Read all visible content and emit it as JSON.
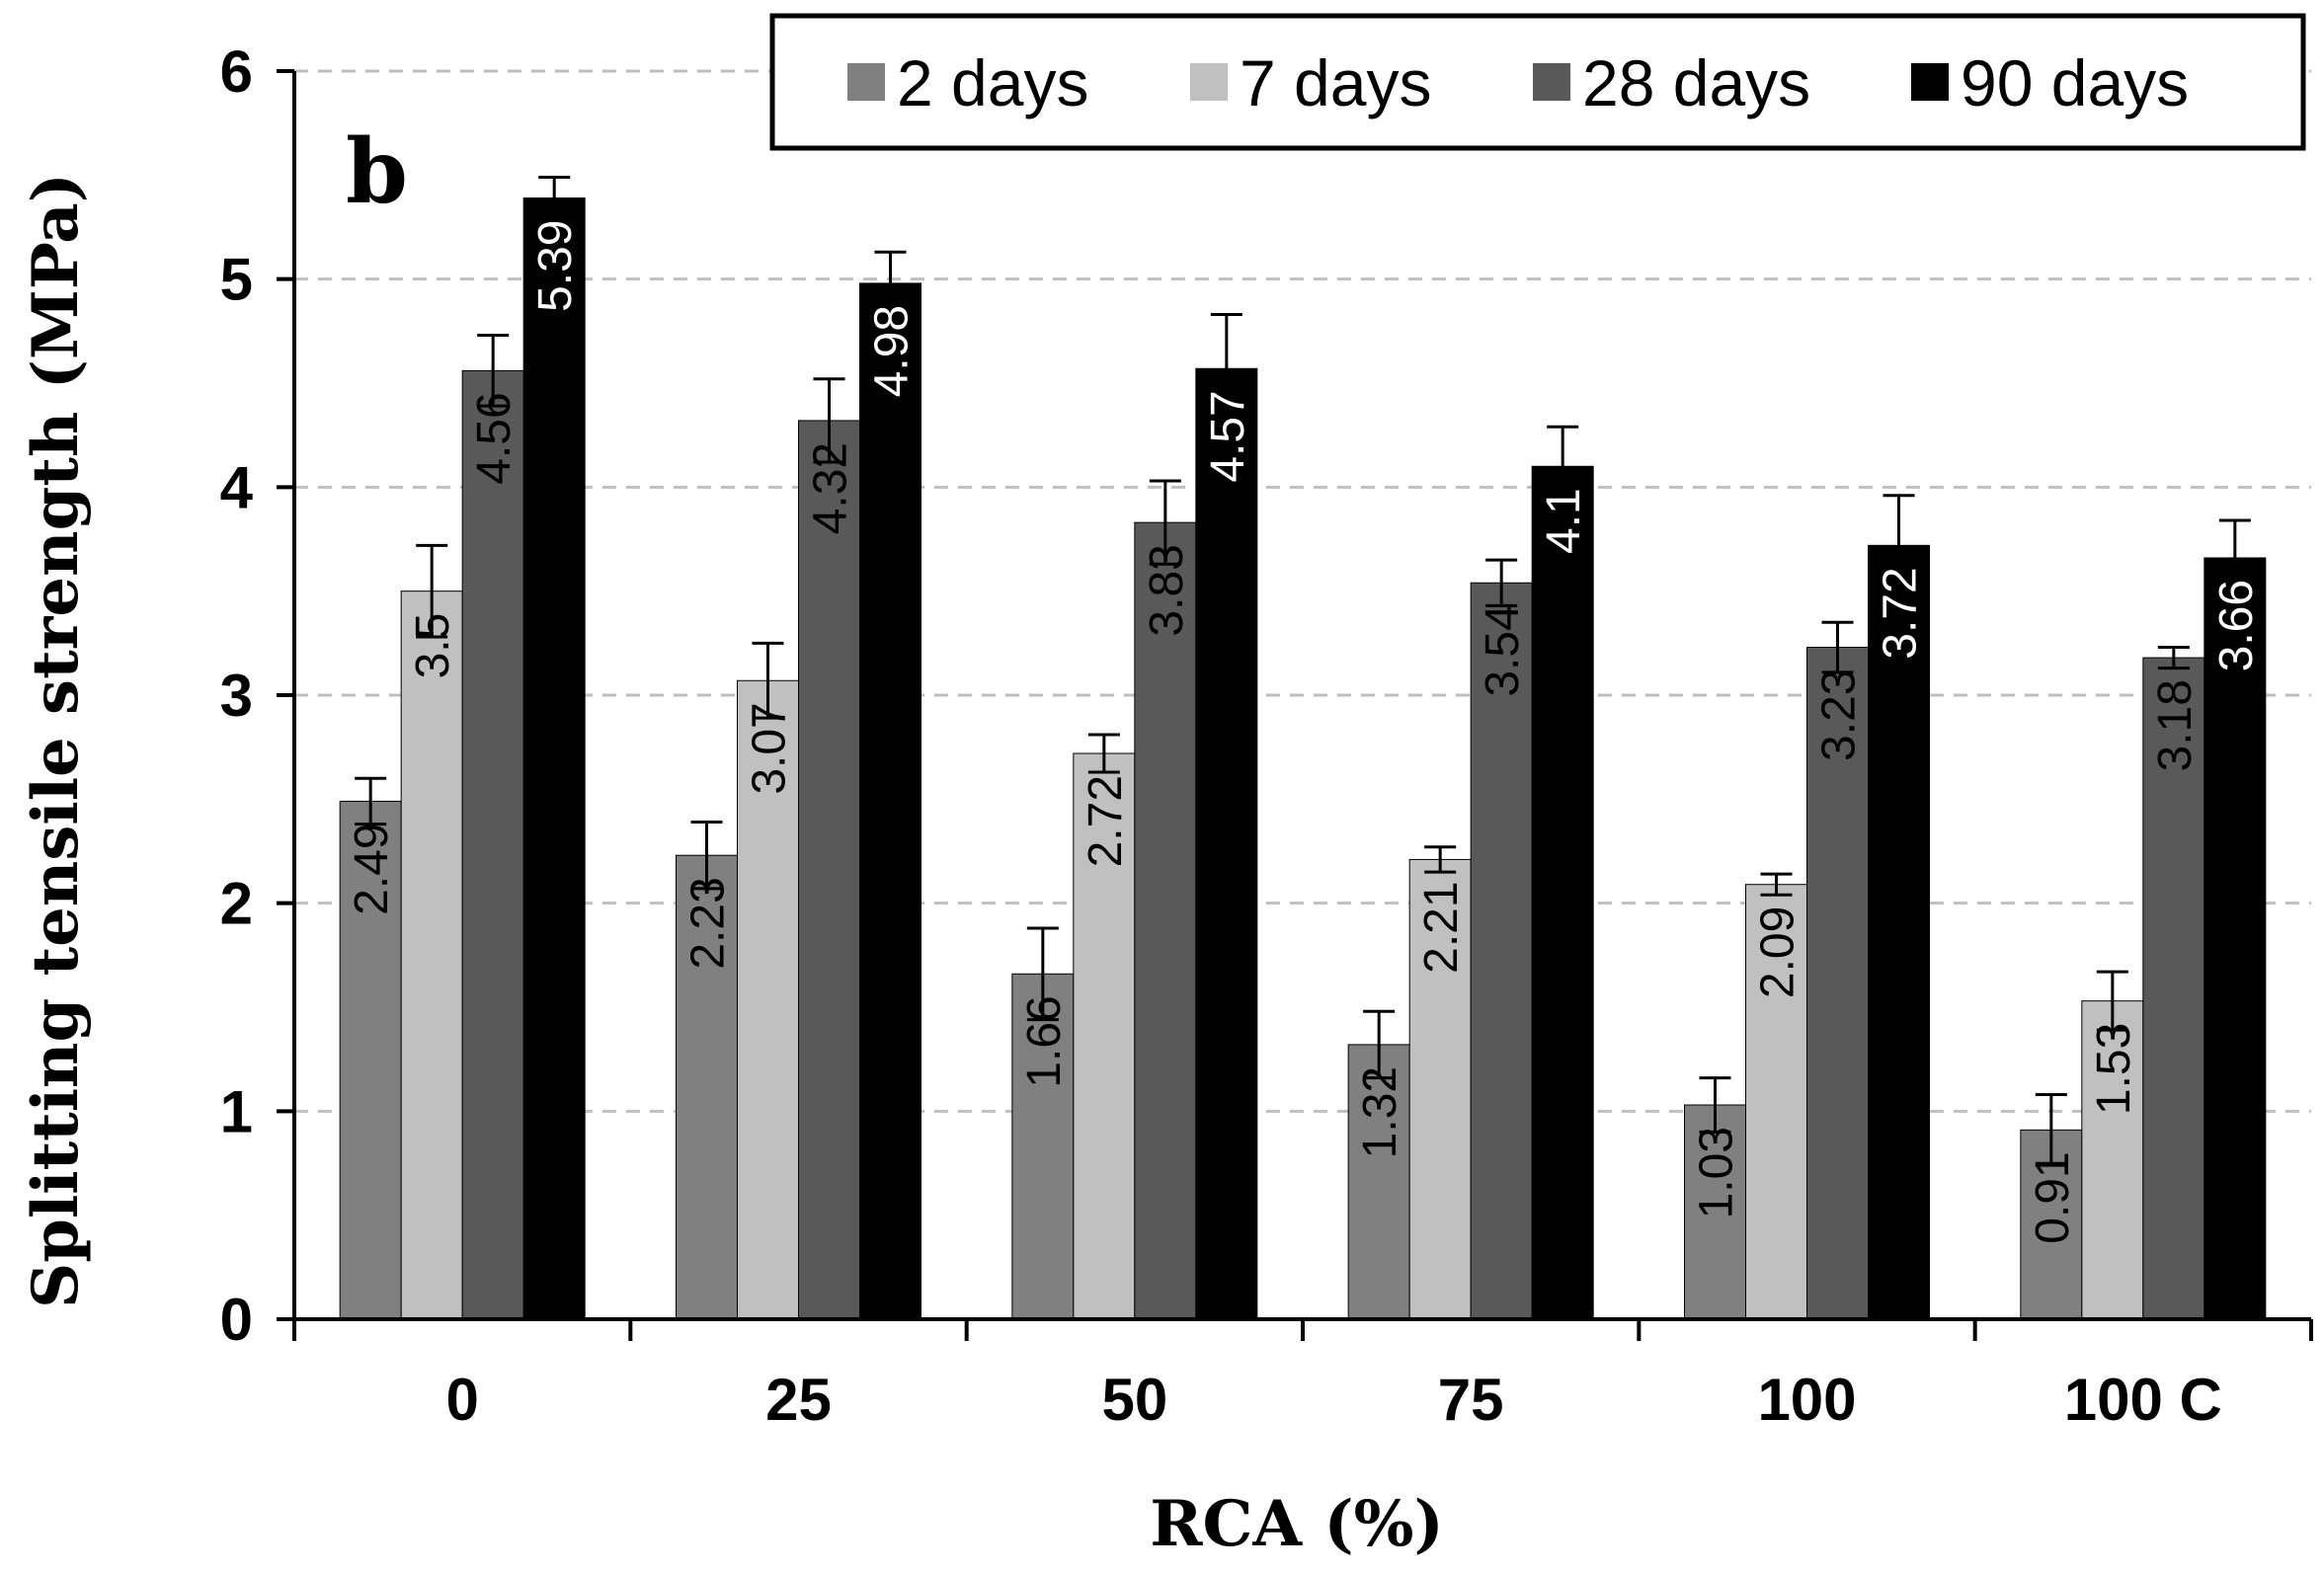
{
  "chart_data": {
    "type": "bar",
    "panel_label": "b",
    "title": "",
    "xlabel": "RCA (%)",
    "ylabel": "Splitting tensile strength (MPa)",
    "ylim": [
      0,
      6
    ],
    "yticks": [
      "0",
      "1",
      "2",
      "3",
      "4",
      "5",
      "6"
    ],
    "grid": "horizontal dashed",
    "legend_position": "top-right",
    "categories": [
      "0",
      "25",
      "50",
      "75",
      "100",
      "100 C"
    ],
    "series": [
      {
        "name": "2 days",
        "color": "#808080",
        "label_color": "#000000",
        "values": [
          2.49,
          2.23,
          1.66,
          1.32,
          1.03,
          0.91
        ],
        "labels": [
          "2.49",
          "2.23",
          "1.66",
          "1.32",
          "1.03",
          "0.91"
        ],
        "error": [
          0.11,
          0.16,
          0.22,
          0.16,
          0.13,
          0.17
        ]
      },
      {
        "name": "7 days",
        "color": "#c0c0c0",
        "label_color": "#000000",
        "values": [
          3.5,
          3.07,
          2.72,
          2.21,
          2.09,
          1.53
        ],
        "labels": [
          "3.5",
          "3.07",
          "2.72",
          "2.21",
          "2.09",
          "1.53"
        ],
        "error": [
          0.22,
          0.18,
          0.09,
          0.06,
          0.05,
          0.14
        ]
      },
      {
        "name": "28 days",
        "color": "#595959",
        "label_color": "#000000",
        "values": [
          4.56,
          4.32,
          3.83,
          3.54,
          3.23,
          3.18
        ],
        "labels": [
          "4.56",
          "4.32",
          "3.83",
          "3.54",
          "3.23",
          "3.18"
        ],
        "error": [
          0.17,
          0.2,
          0.2,
          0.11,
          0.12,
          0.05
        ]
      },
      {
        "name": "90 days",
        "color": "#000000",
        "label_color": "#ffffff",
        "values": [
          5.39,
          4.98,
          4.57,
          4.1,
          3.72,
          3.66
        ],
        "labels": [
          "5.39",
          "4.98",
          "4.57",
          "4.1",
          "3.72",
          "3.66"
        ],
        "error": [
          0.1,
          0.15,
          0.26,
          0.19,
          0.24,
          0.18
        ]
      }
    ]
  }
}
